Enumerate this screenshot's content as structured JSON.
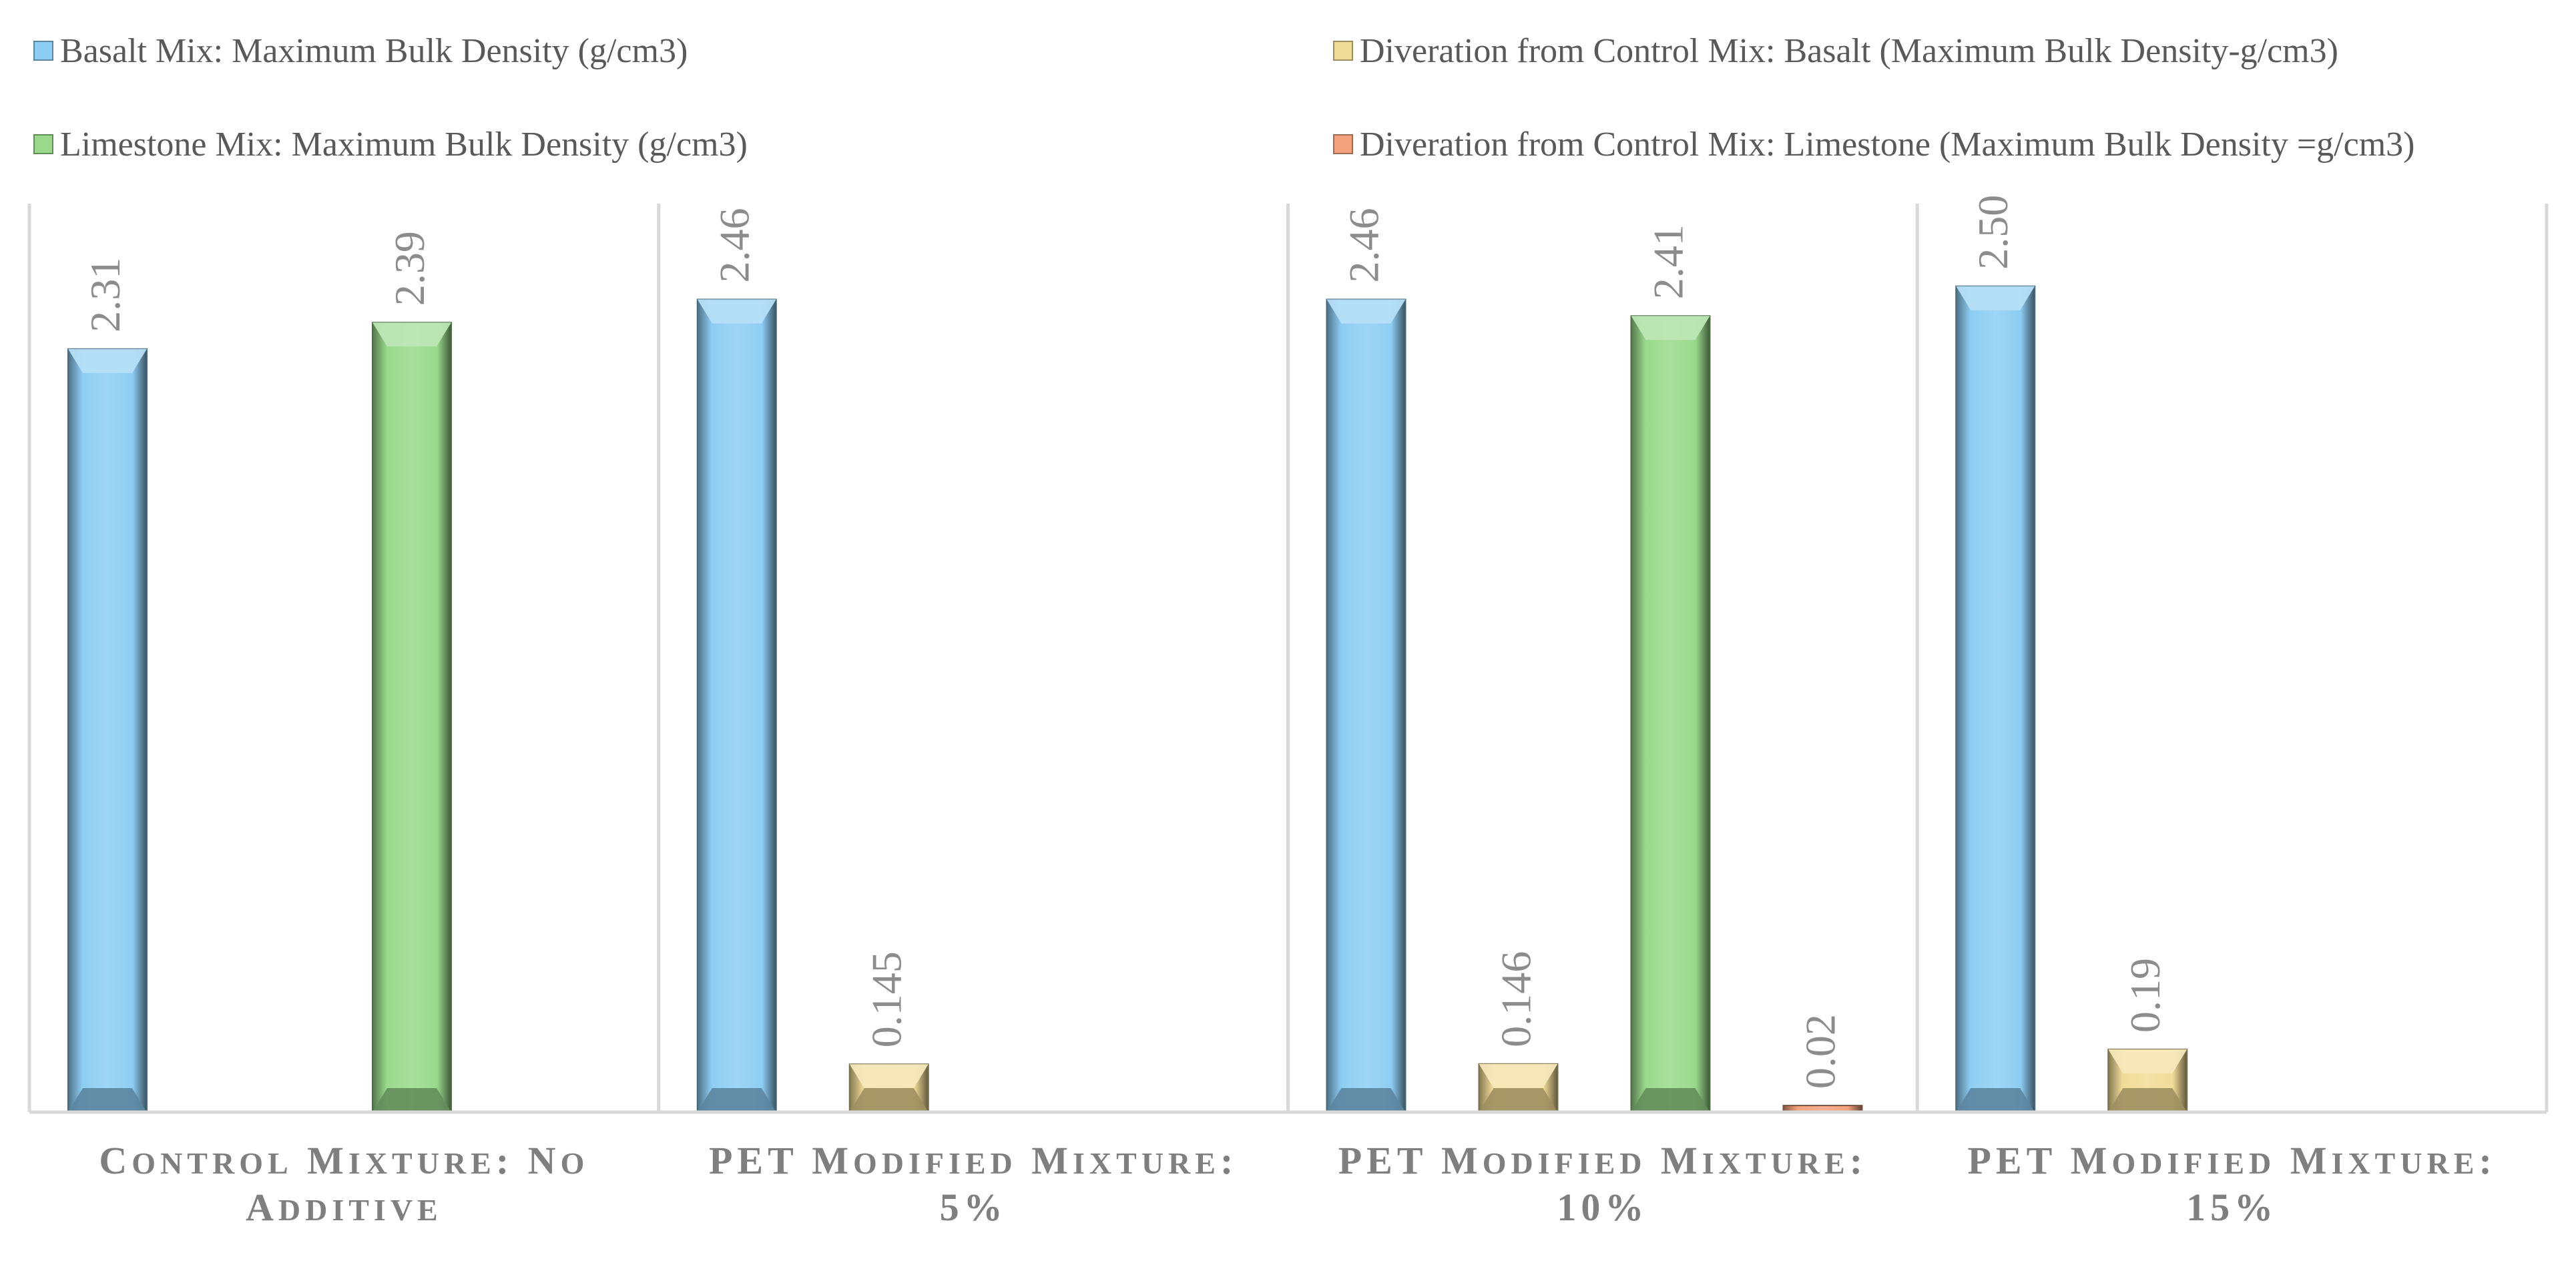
{
  "chart_data": {
    "type": "bar",
    "categories": [
      "Control Mixture: No Additive",
      "PET Modified Mixture: 5%",
      "PET Modified Mixture: 10%",
      "PET Modified Mixture: 15%"
    ],
    "series": [
      {
        "name": "Basalt Mix: Maximum Bulk Density (g/cm3)",
        "color": "#8ecdf3",
        "values": [
          2.31,
          2.46,
          2.46,
          2.5
        ],
        "labels": [
          "2.31",
          "2.46",
          "2.46",
          "2.50"
        ]
      },
      {
        "name": "Diveration from Control Mix: Basalt (Maximum Bulk Density-g/cm3)",
        "color": "#f1dc97",
        "values": [
          null,
          0.145,
          0.146,
          0.19
        ],
        "labels": [
          "",
          "0.145",
          "0.146",
          "0.19"
        ]
      },
      {
        "name": "Limestone Mix: Maximum Bulk Density (g/cm3)",
        "color": "#9ad98c",
        "values": [
          2.39,
          null,
          2.41,
          null
        ],
        "labels": [
          "2.39",
          "",
          "2.41",
          ""
        ]
      },
      {
        "name": "Diveration from Control Mix: Limestone (Maximum Bulk Density =g/cm3)",
        "color": "#f4a27e",
        "values": [
          null,
          null,
          0.02,
          null
        ],
        "labels": [
          "",
          "",
          "0.02",
          ""
        ]
      }
    ],
    "ylim": [
      0,
      2.75
    ],
    "grid": false,
    "legend_position": "top"
  }
}
